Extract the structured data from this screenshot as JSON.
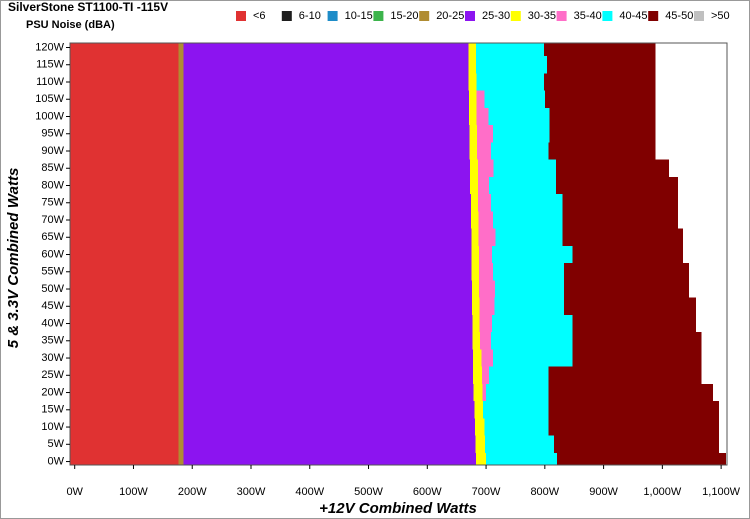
{
  "chart_data": {
    "type": "noise-map",
    "title": "SilverStone ST1100-TI -115V",
    "subtitle": "PSU Noise (dBA)",
    "x_label": "+12V Combined Watts",
    "y_label": "5 & 3.3V Combined Watts",
    "xlim": [
      -8,
      1110
    ],
    "ylim": [
      -1,
      121.3
    ],
    "xticks": [
      {
        "value": 0,
        "label": "0W"
      },
      {
        "value": 100,
        "label": "100W"
      },
      {
        "value": 200,
        "label": "200W"
      },
      {
        "value": 300,
        "label": "300W"
      },
      {
        "value": 400,
        "label": "400W"
      },
      {
        "value": 500,
        "label": "500W"
      },
      {
        "value": 600,
        "label": "600W"
      },
      {
        "value": 700,
        "label": "700W"
      },
      {
        "value": 800,
        "label": "800W"
      },
      {
        "value": 900,
        "label": "900W"
      },
      {
        "value": 1000,
        "label": "1,000W"
      },
      {
        "value": 1100,
        "label": "1,100W"
      }
    ],
    "yticks": [
      {
        "value": 0,
        "label": "0W"
      },
      {
        "value": 5,
        "label": "5W"
      },
      {
        "value": 10,
        "label": "10W"
      },
      {
        "value": 15,
        "label": "15W"
      },
      {
        "value": 20,
        "label": "20W"
      },
      {
        "value": 25,
        "label": "25W"
      },
      {
        "value": 30,
        "label": "30W"
      },
      {
        "value": 35,
        "label": "35W"
      },
      {
        "value": 40,
        "label": "40W"
      },
      {
        "value": 45,
        "label": "45W"
      },
      {
        "value": 50,
        "label": "50W"
      },
      {
        "value": 55,
        "label": "55W"
      },
      {
        "value": 60,
        "label": "60W"
      },
      {
        "value": 65,
        "label": "65W"
      },
      {
        "value": 70,
        "label": "70W"
      },
      {
        "value": 75,
        "label": "75W"
      },
      {
        "value": 80,
        "label": "80W"
      },
      {
        "value": 85,
        "label": "85W"
      },
      {
        "value": 90,
        "label": "90W"
      },
      {
        "value": 95,
        "label": "95W"
      },
      {
        "value": 100,
        "label": "100W"
      },
      {
        "value": 105,
        "label": "105W"
      },
      {
        "value": 110,
        "label": "110W"
      },
      {
        "value": 115,
        "label": "115W"
      },
      {
        "value": 120,
        "label": "120W"
      }
    ],
    "y": [
      0,
      5,
      10,
      15,
      20,
      25,
      30,
      35,
      40,
      45,
      50,
      55,
      60,
      65,
      70,
      75,
      80,
      85,
      90,
      95,
      100,
      105,
      110,
      115,
      120
    ],
    "series": [
      {
        "name": "<6",
        "color": "#e03232",
        "values": [
          177,
          177,
          177,
          177,
          177,
          177,
          177,
          177,
          177,
          177,
          177,
          177,
          177,
          177,
          177,
          177,
          177,
          177,
          177,
          177,
          177,
          177,
          177,
          177,
          177
        ]
      },
      {
        "name": "6-10",
        "color": "#1e1e1e",
        "values": [
          null,
          null,
          null,
          null,
          null,
          null,
          null,
          null,
          null,
          null,
          null,
          null,
          null,
          null,
          null,
          null,
          null,
          null,
          null,
          null,
          null,
          null,
          null,
          null,
          null
        ]
      },
      {
        "name": "10-15",
        "color": "#1e8cc8",
        "values": [
          null,
          null,
          null,
          null,
          null,
          null,
          null,
          null,
          null,
          null,
          null,
          null,
          null,
          null,
          null,
          null,
          null,
          null,
          null,
          null,
          null,
          null,
          null,
          null,
          null
        ]
      },
      {
        "name": "15-20",
        "color": "#3cb44b",
        "values": [
          null,
          null,
          null,
          null,
          null,
          null,
          null,
          null,
          null,
          null,
          null,
          null,
          null,
          null,
          null,
          null,
          null,
          null,
          null,
          null,
          null,
          null,
          null,
          null,
          null
        ]
      },
      {
        "name": "20-25",
        "color": "#b08c32",
        "values": [
          185,
          185,
          185,
          185,
          185,
          185,
          185,
          185,
          185,
          185,
          185,
          185,
          185,
          185,
          185,
          185,
          185,
          185,
          185,
          185,
          185,
          185,
          185,
          185,
          185
        ]
      },
      {
        "name": "25-30",
        "color": "#8c14f0",
        "values": [
          683,
          682,
          681,
          680,
          679,
          678,
          678,
          677,
          677,
          676,
          676,
          675,
          675,
          675,
          674,
          674,
          673,
          673,
          672,
          672,
          671,
          671,
          670,
          670,
          670
        ]
      },
      {
        "name": "30-35",
        "color": "#ffff00",
        "values": [
          700,
          698,
          697,
          695,
          694,
          693,
          692,
          690,
          689,
          689,
          688,
          688,
          688,
          687,
          687,
          686,
          686,
          686,
          685,
          685,
          684,
          684,
          684,
          683,
          683
        ]
      },
      {
        "name": "35-40",
        "color": "#ff6ec8",
        "values": [
          700,
          698,
          697,
          695,
          700,
          705,
          712,
          708,
          710,
          714,
          715,
          712,
          710,
          716,
          712,
          708,
          705,
          713,
          708,
          712,
          704,
          697,
          684,
          683,
          683
        ]
      },
      {
        "name": "40-45",
        "color": "#00ffff",
        "values": [
          821,
          816,
          806,
          806,
          806,
          806,
          847,
          847,
          847,
          833,
          833,
          833,
          847,
          830,
          830,
          830,
          819,
          819,
          806,
          808,
          808,
          800,
          799,
          804,
          799
        ]
      },
      {
        "name": "45-50",
        "color": "#800000",
        "values": [
          1108,
          1096,
          1096,
          1096,
          1086,
          1067,
          1067,
          1067,
          1057,
          1057,
          1045,
          1045,
          1035,
          1035,
          1027,
          1027,
          1027,
          1011,
          988,
          988,
          988,
          988,
          988,
          988,
          988
        ]
      },
      {
        "name": ">50",
        "color": "#c0c0c0",
        "values": [
          null,
          null,
          null,
          null,
          null,
          null,
          null,
          null,
          null,
          null,
          null,
          null,
          null,
          null,
          null,
          null,
          null,
          null,
          null,
          null,
          null,
          null,
          null,
          null,
          null
        ]
      }
    ]
  }
}
